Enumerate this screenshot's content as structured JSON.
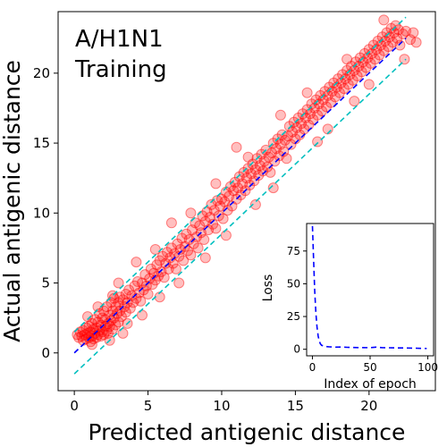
{
  "chart_data": [
    {
      "type": "scatter",
      "title": "",
      "annotation_lines": [
        "A/H1N1",
        "Training"
      ],
      "xlabel": "Predicted antigenic distance",
      "ylabel": "Actual antigenic distance",
      "xlim": [
        -1.1,
        24.5
      ],
      "ylim": [
        -2.7,
        24.4
      ],
      "xticks": [
        0,
        5,
        10,
        15,
        20
      ],
      "yticks": [
        0,
        5,
        10,
        15,
        20
      ],
      "grid": false,
      "point_color": "#ff0000",
      "point_alpha": 0.25,
      "lines": [
        {
          "style": "dashed",
          "color": "#0000ff",
          "x": [
            0,
            22.5
          ],
          "y": [
            0,
            22.5
          ]
        },
        {
          "style": "dashed",
          "color": "#00bfbf",
          "x": [
            0,
            22.5
          ],
          "y": [
            1.5,
            24.0
          ]
        },
        {
          "style": "dashed",
          "color": "#00bfbf",
          "x": [
            0,
            22.5
          ],
          "y": [
            -1.5,
            21.0
          ]
        }
      ],
      "points": [
        [
          0.2,
          1.3
        ],
        [
          0.3,
          1.1
        ],
        [
          0.4,
          1.5
        ],
        [
          0.5,
          1.2
        ],
        [
          0.6,
          0.9
        ],
        [
          0.6,
          1.6
        ],
        [
          0.7,
          1.3
        ],
        [
          0.8,
          1.0
        ],
        [
          0.8,
          1.8
        ],
        [
          0.9,
          1.4
        ],
        [
          1.0,
          1.1
        ],
        [
          1.0,
          1.9
        ],
        [
          1.1,
          1.5
        ],
        [
          1.1,
          0.8
        ],
        [
          1.2,
          1.2
        ],
        [
          1.2,
          2.1
        ],
        [
          1.3,
          1.7
        ],
        [
          1.3,
          1.0
        ],
        [
          1.4,
          1.4
        ],
        [
          1.4,
          2.4
        ],
        [
          1.5,
          1.1
        ],
        [
          1.5,
          1.8
        ],
        [
          1.6,
          2.2
        ],
        [
          1.6,
          1.3
        ],
        [
          1.7,
          1.6
        ],
        [
          1.7,
          2.8
        ],
        [
          1.8,
          1.2
        ],
        [
          1.8,
          2.0
        ],
        [
          1.9,
          1.5
        ],
        [
          1.9,
          2.5
        ],
        [
          2.0,
          1.3
        ],
        [
          2.0,
          3.0
        ],
        [
          2.1,
          1.9
        ],
        [
          2.1,
          2.4
        ],
        [
          2.2,
          1.6
        ],
        [
          2.2,
          3.3
        ],
        [
          2.3,
          2.1
        ],
        [
          2.3,
          1.4
        ],
        [
          2.4,
          2.7
        ],
        [
          2.4,
          1.9
        ],
        [
          2.5,
          3.6
        ],
        [
          2.5,
          2.3
        ],
        [
          2.6,
          1.7
        ],
        [
          2.6,
          3.0
        ],
        [
          2.7,
          2.5
        ],
        [
          2.7,
          3.9
        ],
        [
          2.8,
          2.0
        ],
        [
          2.8,
          3.3
        ],
        [
          2.9,
          2.8
        ],
        [
          3.0,
          3.6
        ],
        [
          3.0,
          2.2
        ],
        [
          3.1,
          4.0
        ],
        [
          3.1,
          3.0
        ],
        [
          3.2,
          2.6
        ],
        [
          3.3,
          3.8
        ],
        [
          3.3,
          1.4
        ],
        [
          3.4,
          3.3
        ],
        [
          3.5,
          4.2
        ],
        [
          3.5,
          2.9
        ],
        [
          3.6,
          3.6
        ],
        [
          3.7,
          4.5
        ],
        [
          3.8,
          3.2
        ],
        [
          3.9,
          4.1
        ],
        [
          4.0,
          3.6
        ],
        [
          4.1,
          4.8
        ],
        [
          4.2,
          3.9
        ],
        [
          4.3,
          5.1
        ],
        [
          4.4,
          4.3
        ],
        [
          4.5,
          3.7
        ],
        [
          4.6,
          5.0
        ],
        [
          4.7,
          4.5
        ],
        [
          4.8,
          5.6
        ],
        [
          4.9,
          4.8
        ],
        [
          5.0,
          4.2
        ],
        [
          5.1,
          5.3
        ],
        [
          5.2,
          6.0
        ],
        [
          5.3,
          4.9
        ],
        [
          5.4,
          5.7
        ],
        [
          5.5,
          5.2
        ],
        [
          5.6,
          6.3
        ],
        [
          5.7,
          5.5
        ],
        [
          5.8,
          6.6
        ],
        [
          5.9,
          5.8
        ],
        [
          6.0,
          6.9
        ],
        [
          6.1,
          5.4
        ],
        [
          6.2,
          6.4
        ],
        [
          6.3,
          7.2
        ],
        [
          6.4,
          6.0
        ],
        [
          6.5,
          6.8
        ],
        [
          6.6,
          7.5
        ],
        [
          6.7,
          6.4
        ],
        [
          6.8,
          7.1
        ],
        [
          6.9,
          6.0
        ],
        [
          7.0,
          7.8
        ],
        [
          7.1,
          6.9
        ],
        [
          7.2,
          7.4
        ],
        [
          7.3,
          8.2
        ],
        [
          7.4,
          6.6
        ],
        [
          7.5,
          7.6
        ],
        [
          7.6,
          8.5
        ],
        [
          7.7,
          7.3
        ],
        [
          7.8,
          8.1
        ],
        [
          7.9,
          7.0
        ],
        [
          8.0,
          8.8
        ],
        [
          8.1,
          7.8
        ],
        [
          8.2,
          9.3
        ],
        [
          8.3,
          8.3
        ],
        [
          8.4,
          7.5
        ],
        [
          8.5,
          9.1
        ],
        [
          8.6,
          8.6
        ],
        [
          8.7,
          9.8
        ],
        [
          8.8,
          8.1
        ],
        [
          8.9,
          9.4
        ],
        [
          9.0,
          10.1
        ],
        [
          9.1,
          8.8
        ],
        [
          9.2,
          9.7
        ],
        [
          9.3,
          10.6
        ],
        [
          9.4,
          9.2
        ],
        [
          9.5,
          10.2
        ],
        [
          9.6,
          8.9
        ],
        [
          9.7,
          10.9
        ],
        [
          9.8,
          9.8
        ],
        [
          9.9,
          10.5
        ],
        [
          10.0,
          11.0
        ],
        [
          10.1,
          9.6
        ],
        [
          10.2,
          10.8
        ],
        [
          10.3,
          11.5
        ],
        [
          10.4,
          10.2
        ],
        [
          10.5,
          11.2
        ],
        [
          10.6,
          11.9
        ],
        [
          10.7,
          10.5
        ],
        [
          10.8,
          11.6
        ],
        [
          10.9,
          12.2
        ],
        [
          11.0,
          11.0
        ],
        [
          11.1,
          11.8
        ],
        [
          11.2,
          12.6
        ],
        [
          11.3,
          11.3
        ],
        [
          11.4,
          12.1
        ],
        [
          11.5,
          12.9
        ],
        [
          11.6,
          11.6
        ],
        [
          11.7,
          12.5
        ],
        [
          11.8,
          13.2
        ],
        [
          11.9,
          12.0
        ],
        [
          12.0,
          12.8
        ],
        [
          12.1,
          13.5
        ],
        [
          12.2,
          12.3
        ],
        [
          12.3,
          13.1
        ],
        [
          12.4,
          13.9
        ],
        [
          12.5,
          12.7
        ],
        [
          12.6,
          13.4
        ],
        [
          12.7,
          14.2
        ],
        [
          12.8,
          13.0
        ],
        [
          12.9,
          13.7
        ],
        [
          13.0,
          14.5
        ],
        [
          13.1,
          13.3
        ],
        [
          13.2,
          14.0
        ],
        [
          13.3,
          12.9
        ],
        [
          13.4,
          14.3
        ],
        [
          13.5,
          15.0
        ],
        [
          13.6,
          13.7
        ],
        [
          13.7,
          14.6
        ],
        [
          13.8,
          15.3
        ],
        [
          13.9,
          14.1
        ],
        [
          14.0,
          14.9
        ],
        [
          14.1,
          15.6
        ],
        [
          14.2,
          14.4
        ],
        [
          14.3,
          15.2
        ],
        [
          14.4,
          13.9
        ],
        [
          14.5,
          15.5
        ],
        [
          14.6,
          16.2
        ],
        [
          14.7,
          14.9
        ],
        [
          14.8,
          15.8
        ],
        [
          14.9,
          16.5
        ],
        [
          15.0,
          15.3
        ],
        [
          15.1,
          16.1
        ],
        [
          15.2,
          16.8
        ],
        [
          15.3,
          15.6
        ],
        [
          15.4,
          16.4
        ],
        [
          15.5,
          17.1
        ],
        [
          15.6,
          16.0
        ],
        [
          15.7,
          16.8
        ],
        [
          15.8,
          17.4
        ],
        [
          15.9,
          16.3
        ],
        [
          16.0,
          17.1
        ],
        [
          16.1,
          17.8
        ],
        [
          16.2,
          16.7
        ],
        [
          16.3,
          17.5
        ],
        [
          16.4,
          18.1
        ],
        [
          16.5,
          17.0
        ],
        [
          16.6,
          17.8
        ],
        [
          16.7,
          18.4
        ],
        [
          16.8,
          17.3
        ],
        [
          16.9,
          18.1
        ],
        [
          17.0,
          18.7
        ],
        [
          17.1,
          17.6
        ],
        [
          17.2,
          18.4
        ],
        [
          17.3,
          19.0
        ],
        [
          17.4,
          17.9
        ],
        [
          17.5,
          18.7
        ],
        [
          17.6,
          19.3
        ],
        [
          17.7,
          18.3
        ],
        [
          17.8,
          19.0
        ],
        [
          17.9,
          19.6
        ],
        [
          18.0,
          18.6
        ],
        [
          18.1,
          19.3
        ],
        [
          18.2,
          19.9
        ],
        [
          18.3,
          18.9
        ],
        [
          18.4,
          19.6
        ],
        [
          18.5,
          20.2
        ],
        [
          18.6,
          19.2
        ],
        [
          18.7,
          19.9
        ],
        [
          18.8,
          20.5
        ],
        [
          18.9,
          19.5
        ],
        [
          19.0,
          20.2
        ],
        [
          19.1,
          20.8
        ],
        [
          19.2,
          19.8
        ],
        [
          19.3,
          20.5
        ],
        [
          19.4,
          21.1
        ],
        [
          19.5,
          20.1
        ],
        [
          19.6,
          20.8
        ],
        [
          19.7,
          21.4
        ],
        [
          19.8,
          20.4
        ],
        [
          19.9,
          21.1
        ],
        [
          20.0,
          21.7
        ],
        [
          20.1,
          20.7
        ],
        [
          20.2,
          21.4
        ],
        [
          20.3,
          22.0
        ],
        [
          20.4,
          21.0
        ],
        [
          20.5,
          21.7
        ],
        [
          20.6,
          22.3
        ],
        [
          20.7,
          21.3
        ],
        [
          20.8,
          22.0
        ],
        [
          20.9,
          22.6
        ],
        [
          21.0,
          21.6
        ],
        [
          21.1,
          22.3
        ],
        [
          21.2,
          22.9
        ],
        [
          21.3,
          21.9
        ],
        [
          21.4,
          22.6
        ],
        [
          21.5,
          23.2
        ],
        [
          21.6,
          22.2
        ],
        [
          21.7,
          22.9
        ],
        [
          21.8,
          23.4
        ],
        [
          21.9,
          22.5
        ],
        [
          22.0,
          23.1
        ],
        [
          22.1,
          22.0
        ],
        [
          22.3,
          22.8
        ],
        [
          22.5,
          23.0
        ],
        [
          22.8,
          22.4
        ],
        [
          23.0,
          22.9
        ],
        [
          23.2,
          22.2
        ],
        [
          11.0,
          14.7
        ],
        [
          5.8,
          4.0
        ],
        [
          4.6,
          2.7
        ],
        [
          8.9,
          6.8
        ],
        [
          12.3,
          10.6
        ],
        [
          16.5,
          15.1
        ],
        [
          19.0,
          18.0
        ],
        [
          9.6,
          12.1
        ],
        [
          6.6,
          9.3
        ],
        [
          14.0,
          17.0
        ],
        [
          3.0,
          5.0
        ],
        [
          1.6,
          3.3
        ],
        [
          7.1,
          5.0
        ],
        [
          10.3,
          8.4
        ],
        [
          13.5,
          11.8
        ],
        [
          17.2,
          16.0
        ],
        [
          20.0,
          19.2
        ],
        [
          4.2,
          6.5
        ],
        [
          2.6,
          4.1
        ],
        [
          15.8,
          18.6
        ],
        [
          0.9,
          2.6
        ],
        [
          1.2,
          0.6
        ],
        [
          2.4,
          0.9
        ],
        [
          3.6,
          2.1
        ],
        [
          5.5,
          7.4
        ],
        [
          7.9,
          10.0
        ],
        [
          11.8,
          14.0
        ],
        [
          18.5,
          21.0
        ],
        [
          21.0,
          23.8
        ],
        [
          22.4,
          21.0
        ]
      ]
    },
    {
      "type": "line",
      "title": "",
      "xlabel": "Index of epoch",
      "ylabel": "Loss",
      "xlim": [
        -5,
        105
      ],
      "ylim": [
        -5,
        96
      ],
      "xticks": [
        0,
        50,
        100
      ],
      "yticks": [
        0,
        25,
        50,
        75
      ],
      "grid": false,
      "series": [
        {
          "style": "dashed",
          "color": "#0000ff",
          "x": [
            0,
            1,
            2,
            3,
            4,
            5,
            6,
            7,
            8,
            10,
            12,
            15,
            20,
            25,
            30,
            40,
            50,
            55,
            60,
            70,
            80,
            90,
            99
          ],
          "y": [
            94,
            70,
            45,
            28,
            17,
            10,
            6,
            4,
            3,
            2.5,
            2,
            1.8,
            1.6,
            1.7,
            1.5,
            1.3,
            1.2,
            1.6,
            1.3,
            1.1,
            1.0,
            0.8,
            0.6
          ]
        }
      ]
    }
  ]
}
